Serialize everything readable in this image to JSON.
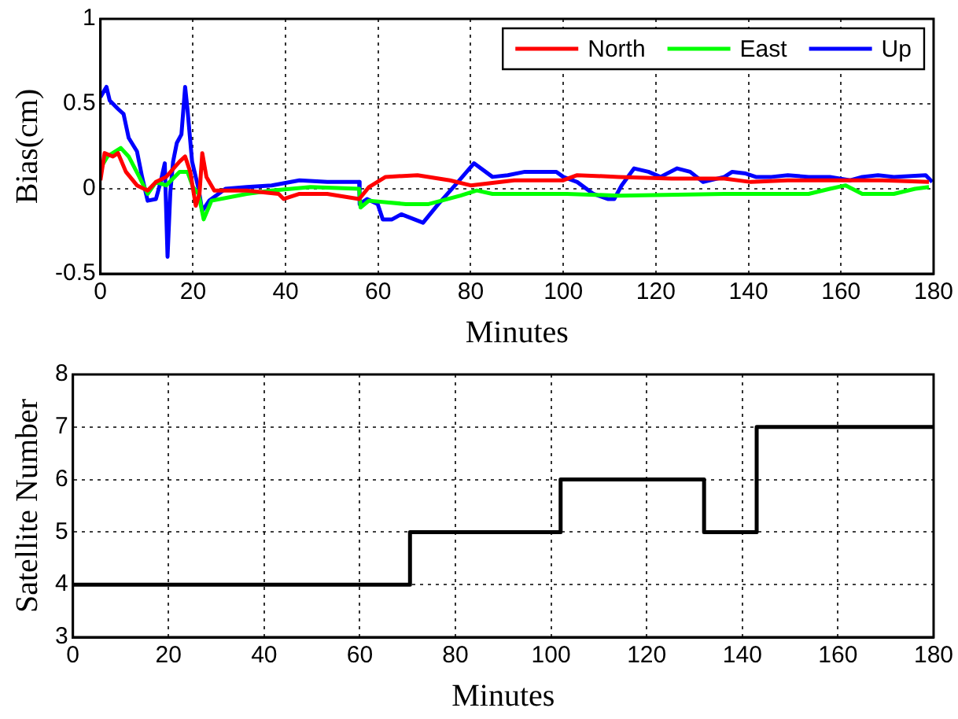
{
  "chart_data": [
    {
      "type": "line",
      "xlabel": "Minutes",
      "ylabel": "Bias(cm)",
      "xlim": [
        0,
        180
      ],
      "xticks": [
        0,
        20,
        40,
        60,
        80,
        100,
        120,
        140,
        160,
        180
      ],
      "ylim": [
        -0.5,
        1
      ],
      "yticks": [
        -0.5,
        0,
        0.5,
        1
      ],
      "grid": true,
      "legend": "top right",
      "marker": "none",
      "line_style": "solid",
      "series": [
        {
          "name": "North",
          "color": "#ff0000",
          "x": [
            0,
            0.9,
            2.7,
            3.8,
            5.5,
            7.9,
            10.2,
            12,
            14.2,
            17.1,
            18.3,
            19.4,
            20.6,
            21.4,
            22,
            22.9,
            24.6,
            31.6,
            38.5,
            39.6,
            43,
            49,
            55.9,
            58,
            61.6,
            68.5,
            75.5,
            80,
            89.4,
            94,
            100,
            103,
            112,
            123.4,
            134.8,
            140.5,
            148.5,
            157.6,
            169,
            179
          ],
          "values": [
            0.05,
            0.21,
            0.19,
            0.21,
            0.1,
            0.02,
            -0.01,
            0.04,
            0.07,
            0.16,
            0.19,
            0.1,
            -0.1,
            -0.03,
            0.21,
            0.07,
            -0.01,
            -0.01,
            -0.03,
            -0.06,
            -0.03,
            -0.03,
            -0.06,
            0.01,
            0.07,
            0.08,
            0.05,
            0.02,
            0.05,
            0.05,
            0.05,
            0.08,
            0.07,
            0.06,
            0.06,
            0.04,
            0.05,
            0.05,
            0.05,
            0.04
          ]
        },
        {
          "name": "East",
          "color": "#00ff00",
          "x": [
            0,
            1.5,
            4.4,
            6.1,
            8.4,
            10.2,
            12,
            14.2,
            17.1,
            18.8,
            20,
            21.2,
            22.3,
            24,
            31.6,
            37,
            45.4,
            55.9,
            56.2,
            58,
            66,
            70.9,
            77.8,
            81.3,
            84.7,
            94,
            100.8,
            112,
            134.8,
            153,
            157.6,
            161,
            164.6,
            171.4,
            176,
            179
          ],
          "values": [
            0.12,
            0.19,
            0.24,
            0.19,
            0.07,
            -0.03,
            0.04,
            0.02,
            0.1,
            0.1,
            0.01,
            -0.03,
            -0.18,
            -0.07,
            -0.03,
            -0.01,
            0.01,
            0,
            -0.11,
            -0.07,
            -0.09,
            -0.09,
            -0.04,
            -0.01,
            -0.03,
            -0.03,
            -0.03,
            -0.04,
            -0.03,
            -0.03,
            0,
            0.02,
            -0.03,
            -0.03,
            0,
            0.01
          ]
        },
        {
          "name": "Up",
          "color": "#0000ff",
          "x": [
            0,
            1.3,
            2,
            3.8,
            5,
            6.1,
            7.9,
            9,
            10.2,
            12,
            13,
            13.9,
            14.5,
            15.1,
            15.7,
            16.5,
            17.5,
            18.3,
            18.8,
            19.8,
            21.2,
            22,
            23.5,
            27,
            31.6,
            37,
            43,
            49,
            55.9,
            56,
            57.6,
            59.9,
            61,
            63,
            65,
            69.7,
            73,
            76.6,
            80.7,
            84.7,
            88,
            91.7,
            96.2,
            98.5,
            100,
            103,
            106.5,
            109.6,
            111,
            112.6,
            115.3,
            118.4,
            121,
            124.6,
            127.4,
            130.2,
            134.8,
            136.5,
            139.4,
            141.6,
            145,
            148.5,
            153,
            157.6,
            162,
            164.6,
            168,
            171.4,
            178.3,
            179.7
          ],
          "values": [
            0.54,
            0.6,
            0.52,
            0.47,
            0.44,
            0.3,
            0.22,
            0.07,
            -0.07,
            -0.06,
            0.04,
            0.15,
            -0.4,
            -0.02,
            0.16,
            0.27,
            0.32,
            0.6,
            0.47,
            0.16,
            0,
            -0.13,
            -0.07,
            0,
            0.01,
            0.02,
            0.05,
            0.04,
            0.04,
            -0.09,
            -0.06,
            -0.09,
            -0.18,
            -0.18,
            -0.15,
            -0.2,
            -0.09,
            0.02,
            0.15,
            0.07,
            0.08,
            0.1,
            0.1,
            0.1,
            0.07,
            0.04,
            -0.03,
            -0.06,
            -0.06,
            0.02,
            0.12,
            0.1,
            0.07,
            0.12,
            0.1,
            0.04,
            0.07,
            0.1,
            0.09,
            0.07,
            0.07,
            0.08,
            0.07,
            0.07,
            0.05,
            0.07,
            0.08,
            0.07,
            0.08,
            0.04
          ]
        }
      ]
    },
    {
      "type": "step",
      "xlabel": "Minutes",
      "ylabel": "Satellite Number",
      "xlim": [
        0,
        180
      ],
      "xticks": [
        0,
        20,
        40,
        60,
        80,
        100,
        120,
        140,
        160,
        180
      ],
      "ylim": [
        3,
        8
      ],
      "yticks": [
        3,
        4,
        5,
        6,
        7,
        8
      ],
      "grid": true,
      "marker": "none",
      "line_style": "solid",
      "series": [
        {
          "color": "#000000",
          "x": [
            0,
            70.5,
            102,
            132,
            143,
            180
          ],
          "values": [
            4,
            5,
            6,
            5,
            7,
            7
          ]
        }
      ]
    }
  ]
}
